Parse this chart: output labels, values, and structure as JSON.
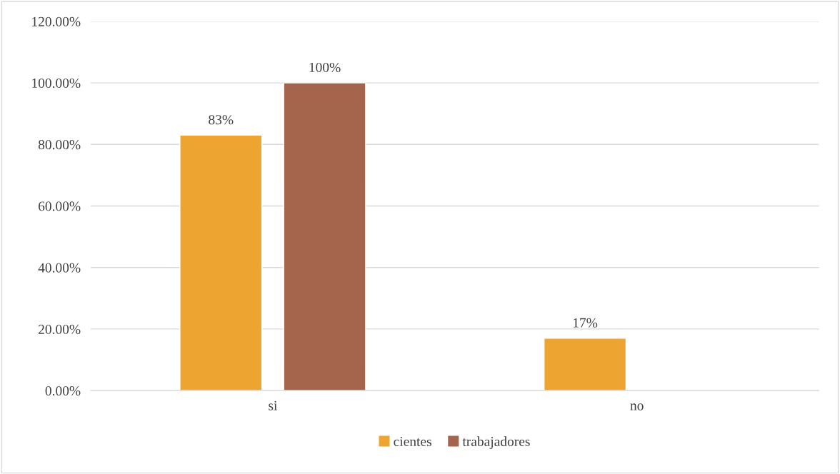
{
  "chart_data": {
    "type": "bar",
    "categories": [
      "si",
      "no"
    ],
    "series": [
      {
        "name": "cientes",
        "color": "#eea430",
        "values": [
          83,
          17
        ],
        "value_labels": [
          "83%",
          "17%"
        ]
      },
      {
        "name": "trabajadores",
        "color": "#a5654d",
        "values": [
          100,
          null
        ],
        "value_labels": [
          "100%",
          null
        ]
      }
    ],
    "ylim": [
      0,
      120
    ],
    "yticks": [
      {
        "value": 0,
        "label": "0.00%"
      },
      {
        "value": 20,
        "label": "20.00%"
      },
      {
        "value": 40,
        "label": "40.00%"
      },
      {
        "value": 60,
        "label": "60.00%"
      },
      {
        "value": 80,
        "label": "80.00%"
      },
      {
        "value": 100,
        "label": "100.00%"
      },
      {
        "value": 120,
        "label": "120.00%"
      }
    ],
    "grid": "y",
    "legend": "bottom"
  }
}
